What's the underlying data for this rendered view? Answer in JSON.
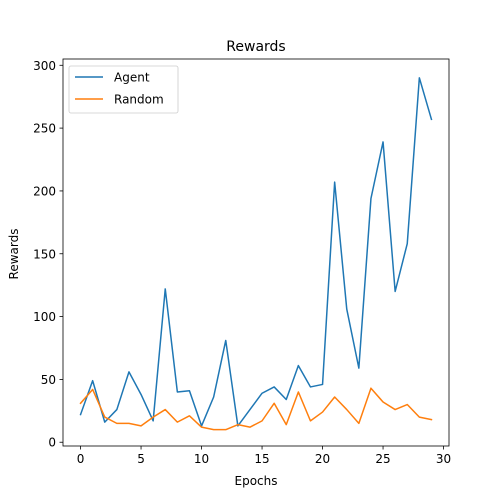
{
  "chart_data": {
    "type": "line",
    "title": "Rewards",
    "xlabel": "Epochs",
    "ylabel": "Rewards",
    "xlim": [
      -1.45,
      30.45
    ],
    "ylim": [
      -3,
      305
    ],
    "xticks": [
      0,
      5,
      10,
      15,
      20,
      25,
      30
    ],
    "yticks": [
      0,
      50,
      100,
      150,
      200,
      250,
      300
    ],
    "grid": false,
    "legend_position": "top-left",
    "x": [
      0,
      1,
      2,
      3,
      4,
      5,
      6,
      7,
      8,
      9,
      10,
      11,
      12,
      13,
      14,
      15,
      16,
      17,
      18,
      19,
      20,
      21,
      22,
      23,
      24,
      25,
      26,
      27,
      28,
      29
    ],
    "series": [
      {
        "name": "Agent",
        "color": "#1f77b4",
        "values": [
          22,
          49,
          16,
          26,
          56,
          38,
          17,
          122,
          40,
          41,
          13,
          36,
          81,
          13,
          26,
          39,
          44,
          34,
          61,
          44,
          46,
          207,
          106,
          59,
          194,
          239,
          120,
          158,
          290,
          257
        ]
      },
      {
        "name": "Random",
        "color": "#ff7f0e",
        "values": [
          31,
          42,
          20,
          15,
          15,
          13,
          20,
          26,
          16,
          21,
          12,
          10,
          10,
          14,
          12,
          17,
          31,
          14,
          40,
          17,
          24,
          36,
          26,
          15,
          43,
          32,
          26,
          30,
          20,
          18
        ]
      }
    ]
  }
}
